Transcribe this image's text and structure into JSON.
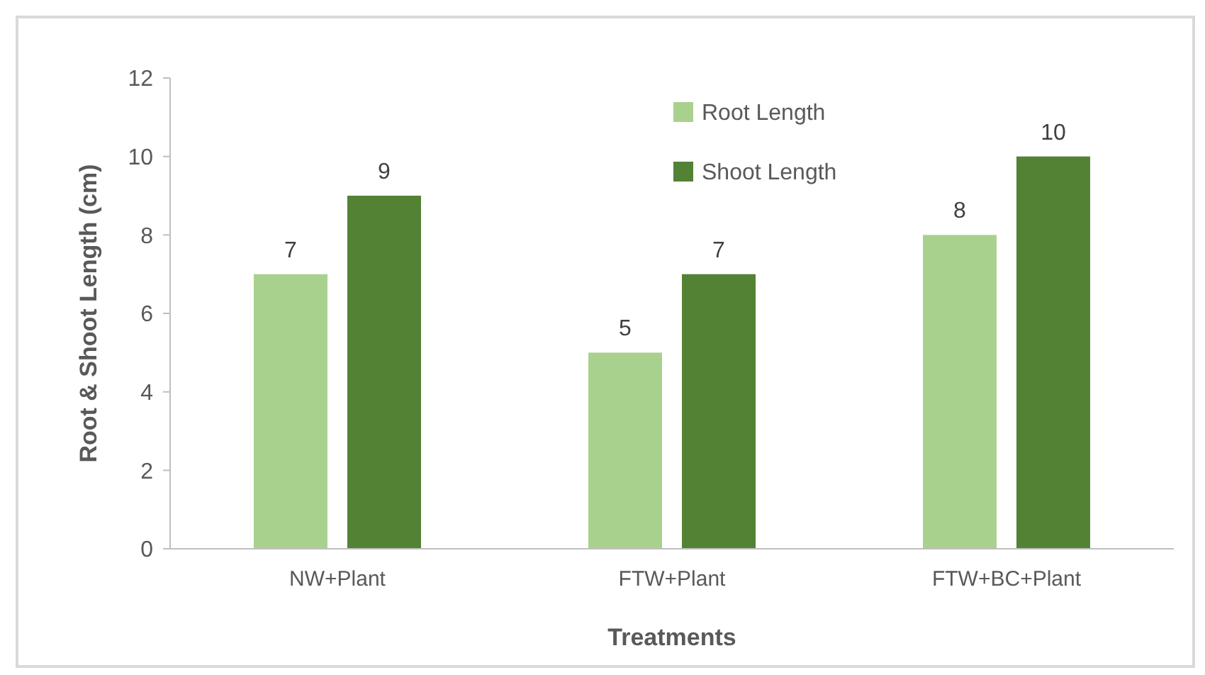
{
  "chart_data": {
    "type": "bar",
    "xlabel": "Treatments",
    "ylabel": "Root & Shoot Length (cm)",
    "categories": [
      "NW+Plant",
      "FTW+Plant",
      "FTW+BC+Plant"
    ],
    "series": [
      {
        "name": "Root Length",
        "color": "#a9d18e",
        "values": [
          7,
          5,
          8
        ]
      },
      {
        "name": "Shoot Length",
        "color": "#548235",
        "values": [
          9,
          7,
          10
        ]
      }
    ],
    "ylim": [
      0,
      12
    ],
    "yticks": [
      0,
      2,
      4,
      6,
      8,
      10,
      12
    ],
    "grid": false,
    "legend": "top",
    "data_labels": true
  }
}
